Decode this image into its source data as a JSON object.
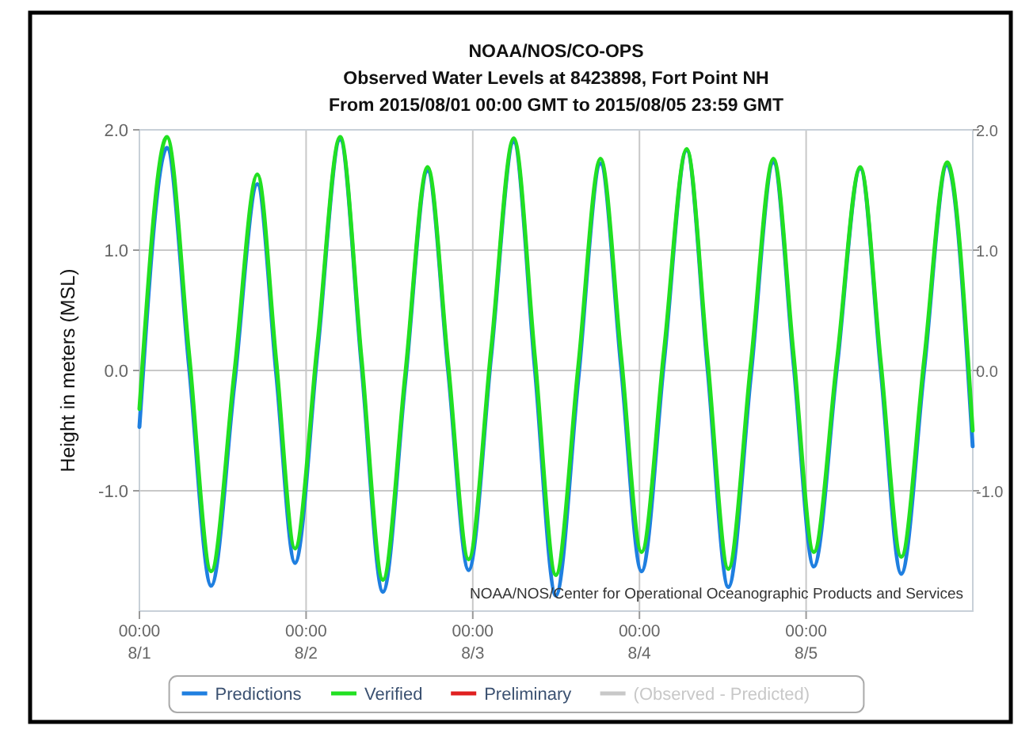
{
  "chart_data": {
    "type": "line",
    "title": "NOAA/NOS/CO-OPS",
    "subtitle": "Observed Water Levels at 8423898, Fort Point NH\nFrom 2015/08/01 00:00 GMT to 2015/08/05 23:59 GMT",
    "ylabel": "Height in meters (MSL)",
    "x": [
      "2015-08-01T00:00",
      "2015-08-01T03:58",
      "2015-08-01T07:09",
      "2015-08-01T10:20",
      "2015-08-01T13:40",
      "2015-08-01T16:59",
      "2015-08-01T19:42",
      "2015-08-01T22:24",
      "2015-08-02T01:39",
      "2015-08-02T04:54",
      "2015-08-02T07:59",
      "2015-08-02T11:04",
      "2015-08-02T14:17",
      "2015-08-02T17:30",
      "2015-08-02T20:27",
      "2015-08-02T23:24",
      "2015-08-03T02:39",
      "2015-08-03T05:54",
      "2015-08-03T08:56",
      "2015-08-03T11:58",
      "2015-08-03T15:11",
      "2015-08-03T18:24",
      "2015-08-03T21:21",
      "2015-08-04T00:18",
      "2015-08-04T03:33",
      "2015-08-04T06:48",
      "2015-08-04T09:48",
      "2015-08-04T12:48",
      "2015-08-04T16:03",
      "2015-08-04T19:18",
      "2015-08-04T22:12",
      "2015-08-05T01:06",
      "2015-08-05T04:27",
      "2015-08-05T07:48",
      "2015-08-05T10:45",
      "2015-08-05T13:42",
      "2015-08-05T17:00",
      "2015-08-05T20:18",
      "2015-08-05T23:59"
    ],
    "series": [
      {
        "name": "Predictions",
        "color": "#1f7fe0",
        "values": [
          -0.47,
          1.85,
          0.03,
          -1.79,
          -0.12,
          1.55,
          -0.03,
          -1.6,
          0.16,
          1.92,
          0.04,
          -1.84,
          -0.09,
          1.66,
          0.0,
          -1.66,
          0.12,
          1.9,
          0.02,
          -1.87,
          -0.08,
          1.72,
          0.03,
          -1.67,
          0.08,
          1.83,
          0.02,
          -1.8,
          -0.04,
          1.73,
          0.05,
          -1.63,
          0.03,
          1.68,
          0.0,
          -1.69,
          0.01,
          1.71,
          -0.63
        ]
      },
      {
        "name": "Verified",
        "color": "#22e022",
        "values": [
          -0.32,
          1.94,
          0.14,
          -1.67,
          -0.02,
          1.63,
          0.08,
          -1.48,
          0.23,
          1.94,
          0.1,
          -1.74,
          -0.03,
          1.69,
          0.06,
          -1.57,
          0.18,
          1.93,
          0.12,
          -1.7,
          0.03,
          1.76,
          0.13,
          -1.51,
          0.17,
          1.84,
          0.1,
          -1.65,
          0.06,
          1.76,
          0.13,
          -1.51,
          0.09,
          1.69,
          0.07,
          -1.55,
          0.09,
          1.73,
          -0.5
        ]
      },
      {
        "name": "Preliminary",
        "color": "#e02020",
        "values": [
          null,
          null,
          null,
          null,
          null,
          null,
          null,
          null,
          null,
          null,
          null,
          null,
          null,
          null,
          null,
          null,
          null,
          null,
          null,
          null,
          null,
          null,
          null,
          null,
          null,
          null,
          null,
          null,
          null,
          null,
          null,
          null,
          null,
          null,
          null,
          null,
          null,
          null,
          null
        ]
      },
      {
        "name": "(Observed - Predicted)",
        "color": "#c8c8c8",
        "values": [
          null,
          null,
          null,
          null,
          null,
          null,
          null,
          null,
          null,
          null,
          null,
          null,
          null,
          null,
          null,
          null,
          null,
          null,
          null,
          null,
          null,
          null,
          null,
          null,
          null,
          null,
          null,
          null,
          null,
          null,
          null,
          null,
          null,
          null,
          null,
          null,
          null,
          null,
          null
        ]
      }
    ],
    "xlim": [
      "2015-08-01T00:00",
      "2015-08-06T00:00"
    ],
    "xticks": [
      {
        "value": "2015-08-01T00:00",
        "label": "00:00\n8/1"
      },
      {
        "value": "2015-08-02T00:00",
        "label": "00:00\n8/2"
      },
      {
        "value": "2015-08-03T00:00",
        "label": "00:00\n8/3"
      },
      {
        "value": "2015-08-04T00:00",
        "label": "00:00\n8/4"
      },
      {
        "value": "2015-08-05T00:00",
        "label": "00:00\n8/5"
      }
    ],
    "ylim": [
      -2,
      2
    ],
    "yticks": [
      {
        "value": -1,
        "label": "-1.0"
      },
      {
        "value": 0,
        "label": "0.0"
      },
      {
        "value": 1,
        "label": "1.0"
      },
      {
        "value": 2,
        "label": "2.0"
      }
    ],
    "y2lim": [
      -2,
      2
    ],
    "y2ticks": [
      {
        "value": -1,
        "label": "-1.0"
      },
      {
        "value": 0,
        "label": "0.0"
      },
      {
        "value": 1,
        "label": "1.0"
      },
      {
        "value": 2,
        "label": "2.0"
      }
    ],
    "annotations": [
      "NOAA/NOS/Center for Operational Oceanographic Products and Services"
    ],
    "grid": true,
    "legend": "bottom",
    "marker": "none",
    "line_style": "solid"
  }
}
